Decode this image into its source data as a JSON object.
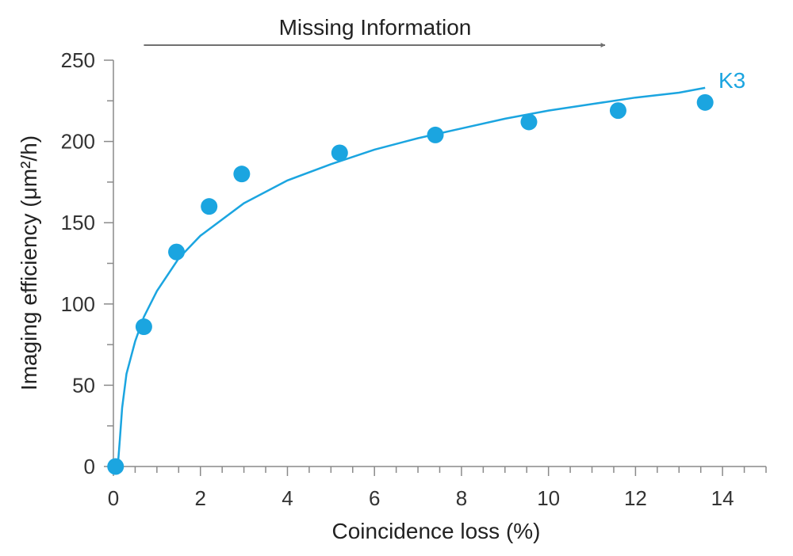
{
  "chart_data": {
    "type": "scatter",
    "xlabel": "Coincidence loss (%)",
    "ylabel": "Imaging efficiency (μm²/h)",
    "xlim": [
      0,
      15
    ],
    "ylim": [
      0,
      250
    ],
    "x_major_ticks": [
      0,
      2,
      4,
      6,
      8,
      10,
      12,
      14
    ],
    "x_minor_step": 0.5,
    "y_major_ticks": [
      0,
      50,
      100,
      150,
      200,
      250
    ],
    "y_minor_step": 25,
    "grid": false,
    "annotation": {
      "text": "Missing Information",
      "arrow_from_x": 0.7,
      "arrow_to_x": 11.3,
      "color": "#707070"
    },
    "series": [
      {
        "name": "K3",
        "color": "#1ba5e0",
        "points": [
          {
            "x": 0.05,
            "y": 0
          },
          {
            "x": 0.7,
            "y": 86
          },
          {
            "x": 1.45,
            "y": 132
          },
          {
            "x": 2.2,
            "y": 160
          },
          {
            "x": 2.95,
            "y": 180
          },
          {
            "x": 5.2,
            "y": 193
          },
          {
            "x": 7.4,
            "y": 204
          },
          {
            "x": 9.55,
            "y": 212
          },
          {
            "x": 11.6,
            "y": 219
          },
          {
            "x": 13.6,
            "y": 224
          }
        ],
        "fit_curve": [
          {
            "x": 0.1,
            "y": 0
          },
          {
            "x": 0.15,
            "y": 17
          },
          {
            "x": 0.2,
            "y": 36
          },
          {
            "x": 0.3,
            "y": 57
          },
          {
            "x": 0.5,
            "y": 77
          },
          {
            "x": 0.7,
            "y": 92
          },
          {
            "x": 1.0,
            "y": 108
          },
          {
            "x": 1.5,
            "y": 128
          },
          {
            "x": 2.0,
            "y": 142
          },
          {
            "x": 3.0,
            "y": 162
          },
          {
            "x": 4.0,
            "y": 176
          },
          {
            "x": 5.0,
            "y": 186
          },
          {
            "x": 6.0,
            "y": 195
          },
          {
            "x": 7.0,
            "y": 202
          },
          {
            "x": 8.0,
            "y": 208
          },
          {
            "x": 9.0,
            "y": 214
          },
          {
            "x": 10.0,
            "y": 219
          },
          {
            "x": 11.0,
            "y": 223
          },
          {
            "x": 12.0,
            "y": 227
          },
          {
            "x": 13.0,
            "y": 230
          },
          {
            "x": 13.6,
            "y": 233
          }
        ]
      }
    ]
  }
}
